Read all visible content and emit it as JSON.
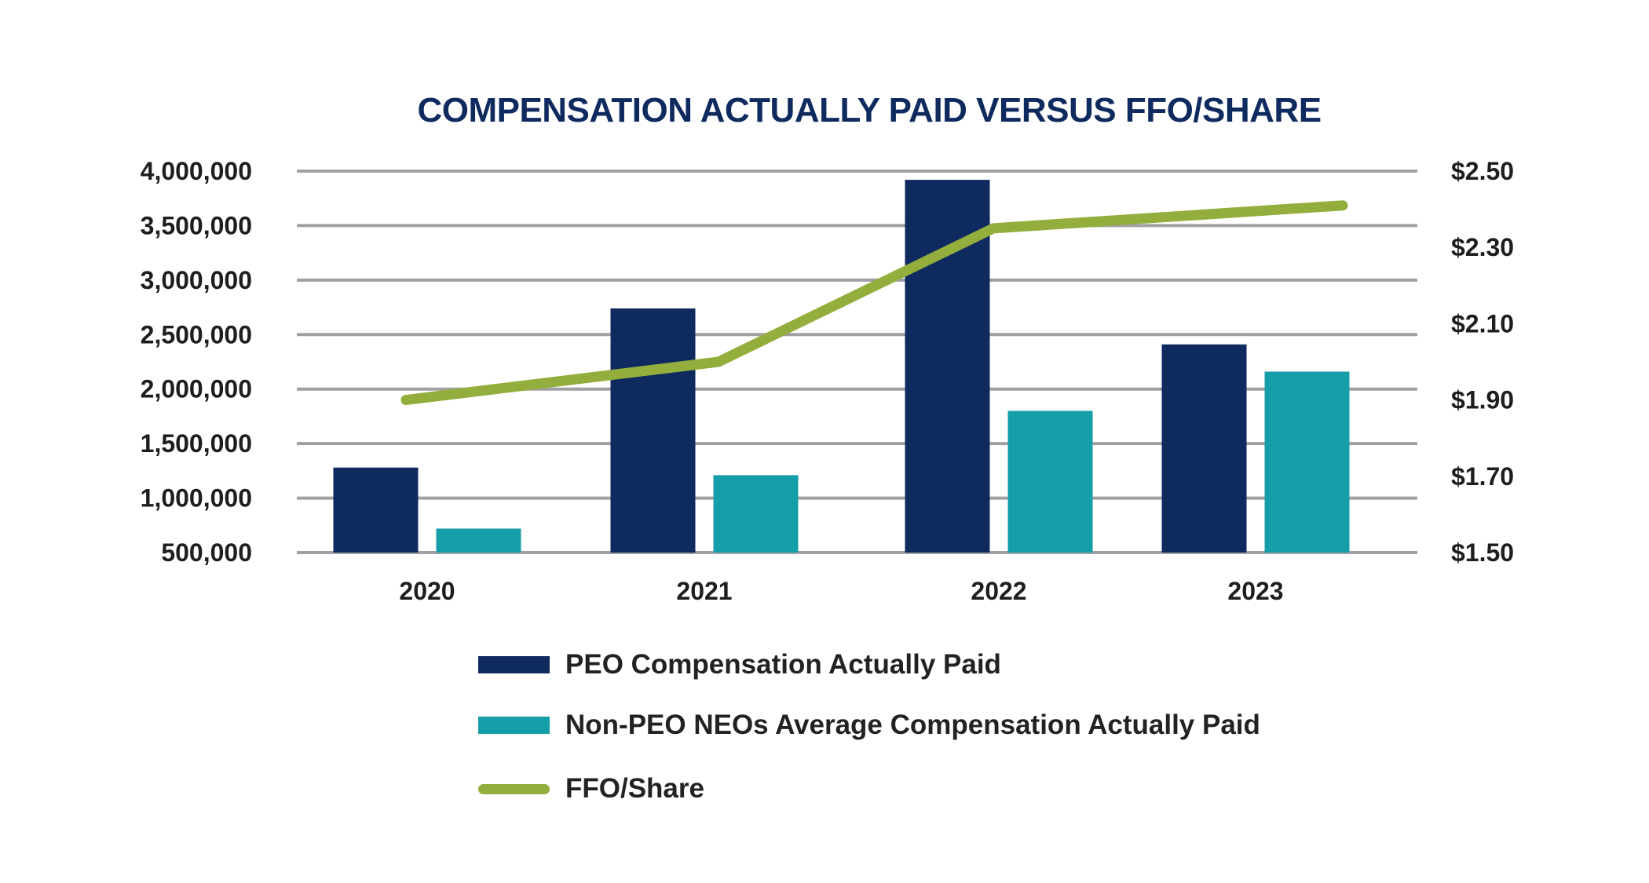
{
  "chart_data": {
    "type": "bar",
    "title": "COMPENSATION ACTUALLY PAID VERSUS FFO/SHARE",
    "categories": [
      "2020",
      "2021",
      "2022",
      "2023"
    ],
    "series": [
      {
        "name": "PEO Compensation Actually Paid",
        "type": "bar",
        "axis": "left",
        "color": "#0f2a5e",
        "values": [
          1280000,
          2740000,
          3920000,
          2410000
        ]
      },
      {
        "name": "Non-PEO NEOs Average Compensation Actually Paid",
        "type": "bar",
        "axis": "left",
        "color": "#169ea8",
        "values": [
          720000,
          1210000,
          1800000,
          2160000
        ]
      },
      {
        "name": "FFO/Share",
        "type": "line",
        "axis": "right",
        "color": "#93ae3c",
        "values": [
          1.9,
          2.0,
          2.35,
          2.41
        ]
      }
    ],
    "y_left": {
      "ylim": [
        500000,
        4000000
      ],
      "ticks": [
        "500,000",
        "1,000,000",
        "1,500,000",
        "2,000,000",
        "2,500,000",
        "3,000,000",
        "3,500,000",
        "4,000,000"
      ]
    },
    "y_right": {
      "ylim": [
        1.5,
        2.5
      ],
      "ticks": [
        "$1.50",
        "$1.70",
        "$1.90",
        "$2.10",
        "$2.30",
        "$2.50"
      ]
    },
    "grid": true,
    "legend_placement": "bottom"
  }
}
